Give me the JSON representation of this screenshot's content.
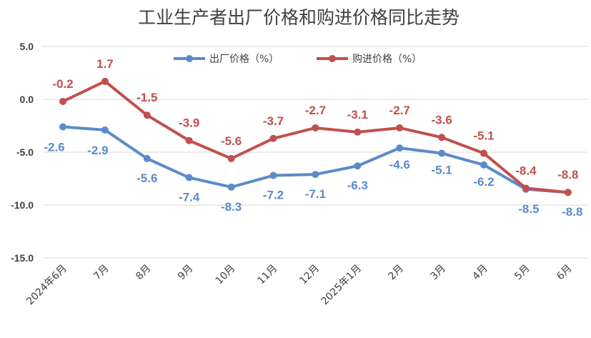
{
  "chart_data": {
    "type": "line",
    "title": "工业生产者出厂价格和购进价格同比走势",
    "categories": [
      "2024年6月",
      "7月",
      "8月",
      "9月",
      "10月",
      "11月",
      "12月",
      "2025年1月",
      "2月",
      "3月",
      "4月",
      "5月",
      "6月"
    ],
    "y_ticks": [
      "5.0",
      "0.0",
      "-5.0",
      "-10.0",
      "-15.0"
    ],
    "ylim": [
      -15,
      5
    ],
    "grid": true,
    "legend_position": "top",
    "series": [
      {
        "name": "出厂价格（%）",
        "color": "#5b8bc9",
        "values": [
          -2.6,
          -2.9,
          -5.6,
          -7.4,
          -8.3,
          -7.2,
          -7.1,
          -6.3,
          -4.6,
          -5.1,
          -6.2,
          -8.5,
          -8.8
        ],
        "labels": [
          "-2.6",
          "-2.9",
          "-5.6",
          "-7.4",
          "-8.3",
          "-7.2",
          "-7.1",
          "-6.3",
          "-4.6",
          "-5.1",
          "-6.2",
          "-8.5",
          "-8.8"
        ]
      },
      {
        "name": "购进价格（%）",
        "color": "#c0504d",
        "values": [
          -0.2,
          1.7,
          -1.5,
          -3.9,
          -5.6,
          -3.7,
          -2.7,
          -3.1,
          -2.7,
          -3.6,
          -5.1,
          -8.4,
          -8.8
        ],
        "labels": [
          "-0.2",
          "1.7",
          "-1.5",
          "-3.9",
          "-5.6",
          "-3.7",
          "-2.7",
          "-3.1",
          "-2.7",
          "-3.6",
          "-5.1",
          "-8.4",
          "-8.8"
        ]
      }
    ]
  }
}
